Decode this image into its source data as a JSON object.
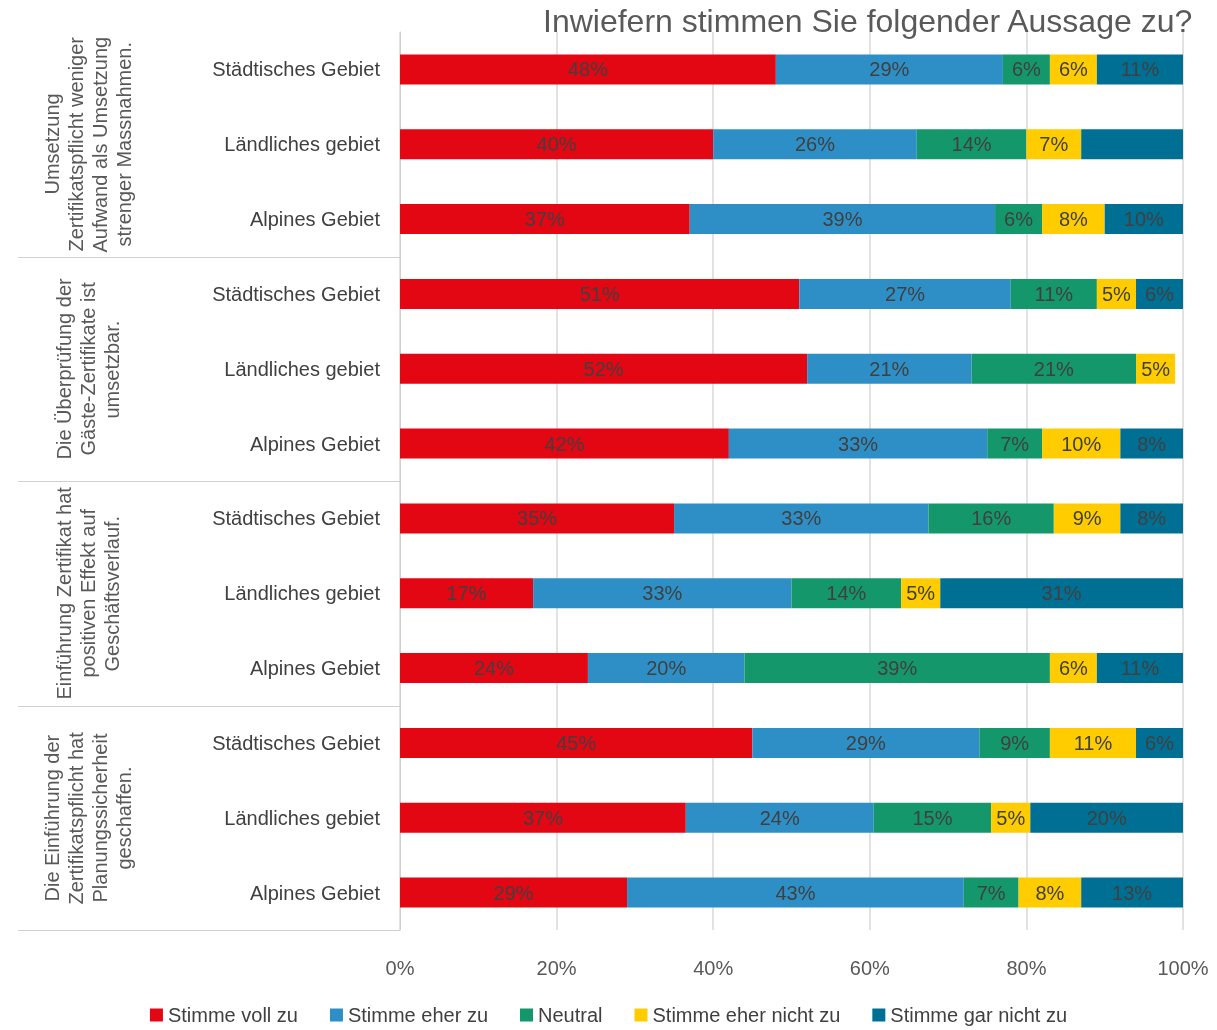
{
  "chart_data": {
    "type": "bar",
    "orientation": "horizontal",
    "stacked": true,
    "title": "Inwiefern stimmen Sie folgender Aussage zu?",
    "categories": [
      "Städtisches Gebiet",
      "Ländliches gebiet",
      "Alpines Gebiet",
      "Städtisches Gebiet",
      "Ländliches gebiet",
      "Alpines Gebiet",
      "Städtisches Gebiet",
      "Ländliches gebiet",
      "Alpines Gebiet",
      "Städtisches Gebiet",
      "Ländliches gebiet",
      "Alpines Gebiet"
    ],
    "annotations": [
      "Umsetzung Zertifikatspflicht weniger Aufwand als Umsetzung strenger Massnahmen.",
      "Die Überprüfung der Gäste-Zertifikate ist umsetzbar.",
      "Einführung Zertifikat hat positiven Effekt auf Geschäftsverlauf.",
      "Die Einführung der Zertifikatspflicht hat Planungssicherheit geschaffen."
    ],
    "series": [
      {
        "name": "Stimme voll zu",
        "color": "#e30613",
        "values": [
          48,
          40,
          37,
          51,
          52,
          42,
          35,
          17,
          24,
          45,
          36.5,
          29
        ],
        "value_labels": [
          "48%",
          "40%",
          "37%",
          "51%",
          "52%",
          "42%",
          "35%",
          "17%",
          "24%",
          "45%",
          "37%",
          "29%"
        ]
      },
      {
        "name": "Stimme eher zu",
        "color": "#2e8fc7",
        "values": [
          29,
          26,
          39,
          27,
          21,
          33,
          32.5,
          33,
          20,
          29,
          24,
          43
        ],
        "value_labels": [
          "29%",
          "26%",
          "39%",
          "27%",
          "21%",
          "33%",
          "33%",
          "33%",
          "20%",
          "29%",
          "24%",
          "43%"
        ]
      },
      {
        "name": "Neutral",
        "color": "#14976b",
        "values": [
          6,
          14,
          6,
          11,
          21,
          7,
          16,
          14,
          39,
          9,
          15,
          7
        ],
        "value_labels": [
          "6%",
          "14%",
          "6%",
          "11%",
          "21%",
          "7%",
          "16%",
          "14%",
          "39%",
          "9%",
          "15%",
          "7%"
        ]
      },
      {
        "name": "Stimme eher nicht zu",
        "color": "#ffcc00",
        "values": [
          6,
          7,
          8,
          5,
          5,
          10,
          8.5,
          5,
          6,
          11,
          5,
          8
        ],
        "value_labels": [
          "6%",
          "7%",
          "8%",
          "5%",
          "5%",
          "10%",
          "9%",
          "5%",
          "6%",
          "11%",
          "5%",
          "8%"
        ]
      },
      {
        "name": "Stimme gar nicht zu",
        "color": "#006f94",
        "values": [
          11,
          13,
          10,
          6,
          null,
          8,
          8,
          31,
          11,
          6,
          19.5,
          13
        ],
        "value_labels": [
          "11%",
          null,
          "10%",
          "6%",
          null,
          "8%",
          "8%",
          "31%",
          "11%",
          "6%",
          "20%",
          "13%"
        ]
      }
    ],
    "xlim": [
      0,
      100
    ],
    "xticks": [
      {
        "value": 0,
        "label": "0%"
      },
      {
        "value": 20,
        "label": "20%"
      },
      {
        "value": 40,
        "label": "40%"
      },
      {
        "value": 60,
        "label": "60%"
      },
      {
        "value": 80,
        "label": "80%"
      },
      {
        "value": 100,
        "label": "100%"
      }
    ],
    "grid": "x",
    "legend": "bottom"
  }
}
